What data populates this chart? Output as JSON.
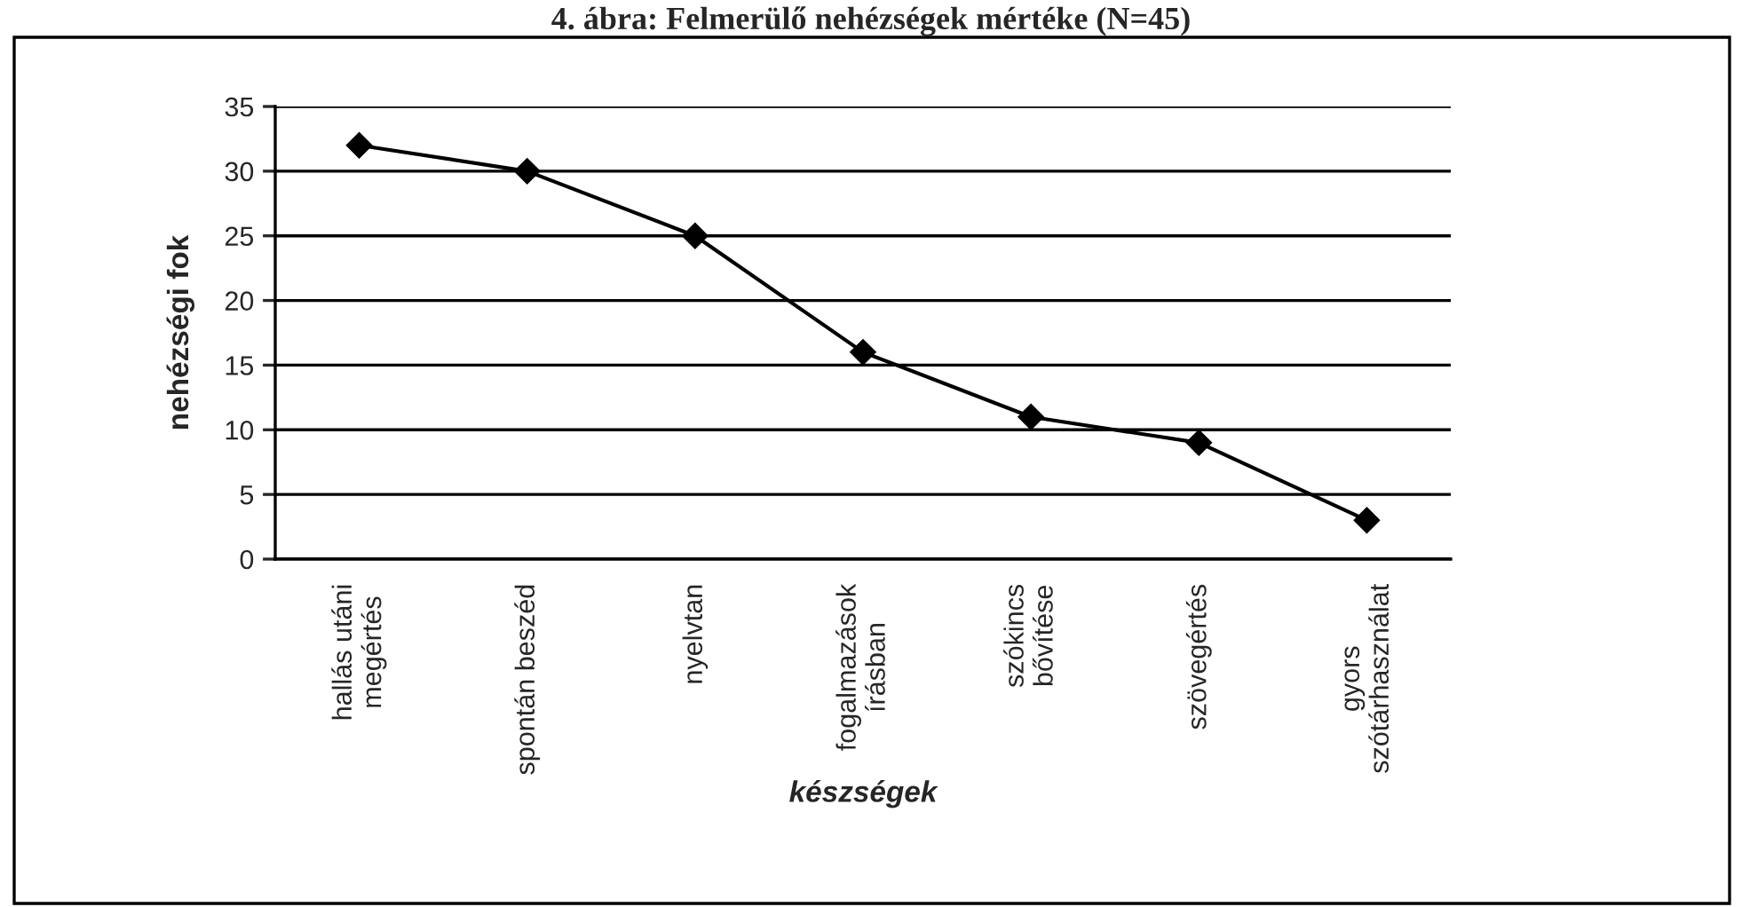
{
  "chart_data": {
    "type": "line",
    "title": "4. ábra: Felmerülő nehézségek mértéke (N=45)",
    "xlabel": "készségek",
    "ylabel": "nehézségi fok",
    "categories": [
      "hallás utáni\nmegértés",
      "spontán beszéd",
      "nyelvtan",
      "fogalmazások\nírásban",
      "szókincs\nbővítése",
      "szövegértés",
      "gyors\nszótárhasználat"
    ],
    "series": [
      {
        "color": "#000000",
        "values": [
          32,
          30,
          25,
          16,
          11,
          9,
          3
        ]
      }
    ],
    "ylim": [
      0,
      35
    ],
    "yticks": [
      0,
      5,
      10,
      15,
      20,
      25,
      30,
      35
    ],
    "grid": "y",
    "legend": false,
    "marker": "diamond",
    "line_style": "solid"
  }
}
